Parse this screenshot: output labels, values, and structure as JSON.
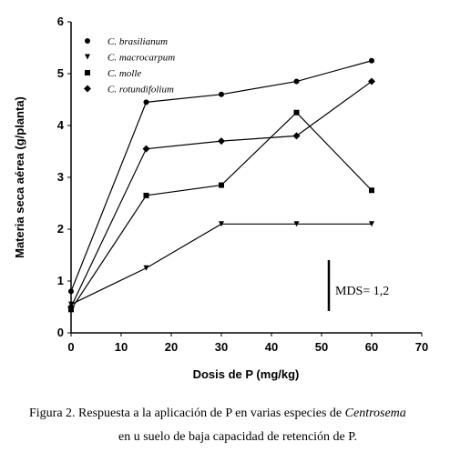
{
  "chart_data": {
    "type": "line",
    "x_label": "Dosis de P (mg/kg)",
    "y_label": "Materia seca aérea (g/planta)",
    "annotation": "MDS= 1,2",
    "caption": [
      "Figura 2. Respuesta a la aplicación de P en varias especies de ",
      "Centrosema",
      "en u suelo de baja capacidad de retención de P."
    ],
    "x": [
      0,
      15,
      30,
      45,
      60
    ],
    "series": [
      {
        "name": "C. brasilianum",
        "color": "#000000",
        "marker": "circle",
        "values": [
          0.8,
          4.45,
          4.6,
          4.85,
          5.25
        ]
      },
      {
        "name": "C. macrocarpum",
        "color": "#000000",
        "marker": "triangle",
        "values": [
          0.55,
          1.25,
          2.1,
          2.1,
          2.1
        ]
      },
      {
        "name": "C. molle",
        "color": "#000000",
        "marker": "square",
        "values": [
          0.45,
          2.65,
          2.85,
          4.25,
          2.75
        ]
      },
      {
        "name": "C. rotundifolium",
        "color": "#000000",
        "marker": "diamond",
        "values": [
          0.5,
          3.55,
          3.7,
          3.8,
          4.85
        ]
      }
    ],
    "xlim": [
      0,
      70
    ],
    "xticks": [
      0,
      10,
      20,
      30,
      40,
      50,
      60,
      70
    ],
    "ylim": [
      0,
      6
    ],
    "yticks": [
      0,
      1,
      2,
      3,
      4,
      5,
      6
    ],
    "grid": false
  }
}
